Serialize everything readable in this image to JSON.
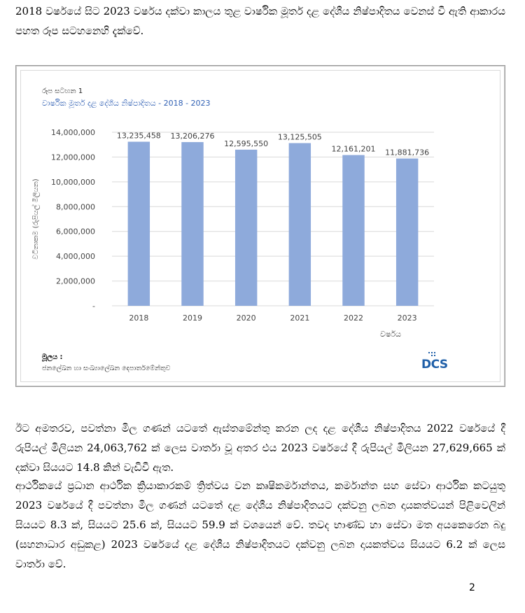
{
  "paragraphs": {
    "intro": "2018 වර්ෂයේ සිට 2023 වර්ෂය දක්වා කාලය තුළ වාර්ෂික මූර්ත දළ දේශීය නිෂ්පාදිතය වෙනස් වී ඇති ආකාරය පහත රූප සටහනෙහි දැක්වේ.",
    "p1": "ඊට අමතරව, පවත්නා මිල ගණන් යටතේ ඇස්තමේන්තු කරන ලද දළ දේශීය නිෂ්පාදිතය 2022 වර්ෂයේ දී රුපියල් මිලියන 24,063,762 ක් ලෙස වාර්තා වූ අතර එය 2023 වර්ෂයේ දී රුපියල් මිලියන 27,629,665 ක් දක්වා සියයට 14.8 කින් වැඩිවී ඇත.",
    "p2": "ආර්ථිකයේ ප්‍රධාන ආර්ථික ක්‍රියාකාරකම් ත්‍රිත්වය වන කෘෂිකර්මාන්තය, කර්මාන්ත සහ සේවා ආර්ථික කටයුතු 2023 වර්ෂයේ දී පවත්නා මිල ගණන් යටතේ දළ දේශීය නිෂ්පාදිතයට දක්වනු ලබන දායකත්වයන් පිළිවෙලින් සියයට 8.3 ක්, සියයට 25.6 ක්, සියයට 59.9 ක් වශයෙන් වේ. තවද භාණ්ඩ හා සේවා මත අයකෙරෙන බදු (සහනාධාර අඩුකළ) 2023 වර්ෂයේ දළ දේශීය නිෂ්පාදිතයට දක්වනු ලබන දායකත්වය සියයට 6.2 ක් ලෙස වාර්තා වේ."
  },
  "figure": {
    "label": "රූප සටහන 1",
    "title": "වාර්ෂික මූර්ත දළ දේශීය නිෂ්පාදිතය -  2018 - 2023",
    "source_label": "මූලය :",
    "source_text": "ජනලේඛන හා සංඛ්‍යාලේඛන දෙපාර්තමේන්තුව",
    "logo_text": "DCS"
  },
  "chart_data": {
    "type": "bar",
    "categories": [
      "2018",
      "2019",
      "2020",
      "2021",
      "2022",
      "2023"
    ],
    "values": [
      13235458,
      13206276,
      12595550,
      13125505,
      12161201,
      11881736
    ],
    "data_labels": [
      "13,235,458",
      "13,206,276",
      "12,595,550",
      "13,125,505",
      "12,161,201",
      "11,881,736"
    ],
    "xlabel": "වර්ෂය",
    "ylabel": "වටිනාකම (රුපියල් මිලියන)",
    "ylim": [
      0,
      14000000
    ],
    "yticks": [
      0,
      2000000,
      4000000,
      6000000,
      8000000,
      10000000,
      12000000,
      14000000
    ],
    "ytick_labels": [
      "-",
      "2,000,000",
      "4,000,000",
      "6,000,000",
      "8,000,000",
      "10,000,000",
      "12,000,000",
      "14,000,000"
    ],
    "grid": true,
    "bar_color": "#8eaadb",
    "legend": "none"
  },
  "page": {
    "number": "2"
  }
}
